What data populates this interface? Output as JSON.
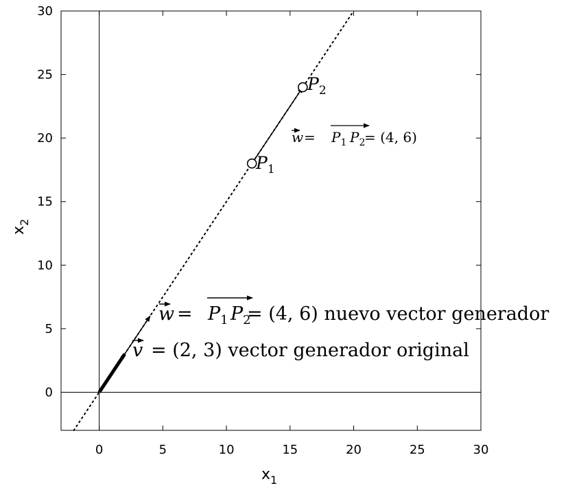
{
  "chart_data": {
    "type": "line",
    "xlabel": "x",
    "xlabel_sub": "1",
    "ylabel": "x",
    "ylabel_sub": "2",
    "xlim": [
      -3,
      30
    ],
    "ylim": [
      -3,
      30
    ],
    "xticks": [
      0,
      5,
      10,
      15,
      20,
      25,
      30
    ],
    "yticks": [
      0,
      5,
      10,
      15,
      20,
      25,
      30
    ],
    "grid": false,
    "axes_through_origin": true,
    "series": [
      {
        "style": "dotted",
        "x": [
          -2,
          20
        ],
        "y": [
          -3,
          30
        ]
      },
      {
        "style": "thick-arrow",
        "x": [
          0,
          2
        ],
        "y": [
          0,
          3
        ]
      },
      {
        "style": "thin-arrow",
        "x": [
          2,
          4
        ],
        "y": [
          3,
          6
        ]
      },
      {
        "style": "thin-arrow",
        "x": [
          12,
          16
        ],
        "y": [
          18,
          24
        ]
      }
    ],
    "points": [
      {
        "x": 12,
        "y": 18,
        "label": "P",
        "sub": "1"
      },
      {
        "x": 16,
        "y": 24,
        "label": "P",
        "sub": "2"
      }
    ],
    "annotations": {
      "w_small": "= (4, 6)",
      "w_big": "= (4, 6) nuevo vector generador",
      "v": "= (2, 3) vector generador original",
      "sym_w": "w",
      "sym_v": "v",
      "sym_P": "P",
      "sub_1": "1",
      "sub_2": "2"
    }
  }
}
